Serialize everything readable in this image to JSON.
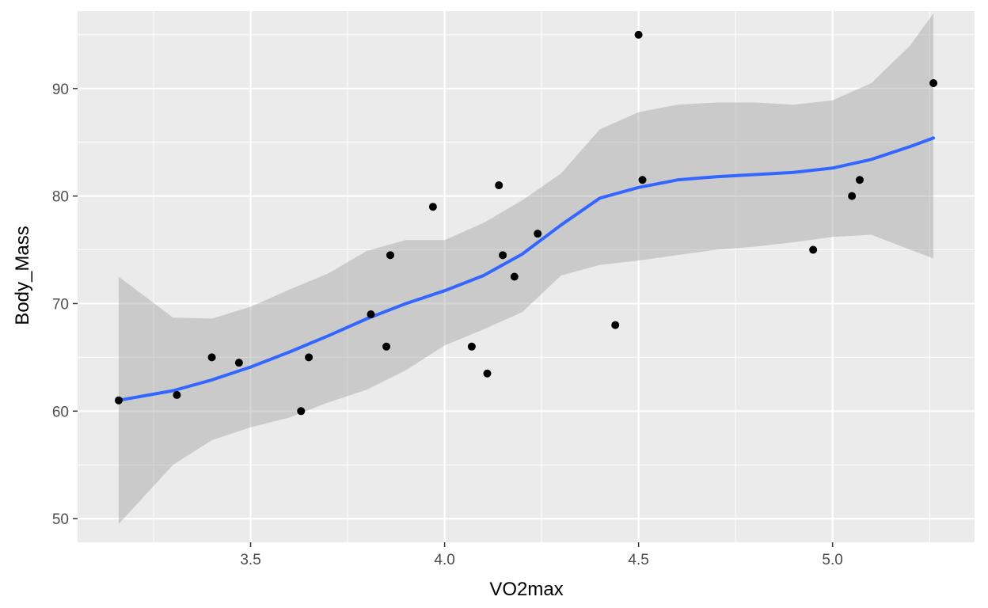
{
  "chart_data": {
    "type": "scatter",
    "title": "",
    "xlabel": "VO2max",
    "ylabel": "Body_Mass",
    "xlim": [
      3.054,
      5.366
    ],
    "ylim": [
      47.8,
      97.2
    ],
    "x_ticks": [
      3.5,
      4.0,
      4.5,
      5.0
    ],
    "x_tick_labels": [
      "3.5",
      "4.0",
      "4.5",
      "5.0"
    ],
    "y_ticks": [
      50,
      60,
      70,
      80,
      90
    ],
    "y_tick_labels": [
      "50",
      "60",
      "70",
      "80",
      "90"
    ],
    "x_minor": [
      3.25,
      3.75,
      4.25,
      4.75,
      5.25
    ],
    "y_minor": [
      55,
      65,
      75,
      85,
      95
    ],
    "grid": true,
    "points": [
      {
        "x": 3.16,
        "y": 61.0
      },
      {
        "x": 3.31,
        "y": 61.5
      },
      {
        "x": 3.4,
        "y": 65.0
      },
      {
        "x": 3.47,
        "y": 64.5
      },
      {
        "x": 3.63,
        "y": 60.0
      },
      {
        "x": 3.65,
        "y": 65.0
      },
      {
        "x": 3.81,
        "y": 69.0
      },
      {
        "x": 3.85,
        "y": 66.0
      },
      {
        "x": 3.86,
        "y": 74.5
      },
      {
        "x": 3.97,
        "y": 79.0
      },
      {
        "x": 4.07,
        "y": 66.0
      },
      {
        "x": 4.11,
        "y": 63.5
      },
      {
        "x": 4.14,
        "y": 81.0
      },
      {
        "x": 4.15,
        "y": 74.5
      },
      {
        "x": 4.18,
        "y": 72.5
      },
      {
        "x": 4.24,
        "y": 76.5
      },
      {
        "x": 4.44,
        "y": 68.0
      },
      {
        "x": 4.5,
        "y": 95.0
      },
      {
        "x": 4.51,
        "y": 81.5
      },
      {
        "x": 4.95,
        "y": 75.0
      },
      {
        "x": 5.05,
        "y": 80.0
      },
      {
        "x": 5.07,
        "y": 81.5
      },
      {
        "x": 5.26,
        "y": 90.5
      }
    ],
    "smooth": {
      "method": "loess",
      "color": "#3366FF",
      "band_color": "#999999",
      "x": [
        3.16,
        3.3,
        3.4,
        3.5,
        3.6,
        3.7,
        3.8,
        3.9,
        4.0,
        4.1,
        4.2,
        4.3,
        4.4,
        4.5,
        4.6,
        4.7,
        4.8,
        4.9,
        5.0,
        5.1,
        5.2,
        5.26
      ],
      "y": [
        61.0,
        61.9,
        62.9,
        64.1,
        65.5,
        67.0,
        68.6,
        70.0,
        71.2,
        72.6,
        74.6,
        77.3,
        79.8,
        80.8,
        81.5,
        81.8,
        82.0,
        82.2,
        82.6,
        83.4,
        84.6,
        85.4
      ],
      "lower": [
        49.5,
        55.0,
        57.3,
        58.5,
        59.4,
        60.8,
        62.0,
        63.8,
        66.1,
        67.6,
        69.2,
        72.6,
        73.6,
        74.0,
        74.5,
        75.0,
        75.3,
        75.7,
        76.2,
        76.4,
        75.0,
        74.2
      ],
      "upper": [
        72.5,
        68.7,
        68.6,
        69.7,
        71.3,
        72.8,
        74.9,
        75.9,
        75.9,
        77.5,
        79.6,
        82.1,
        86.2,
        87.8,
        88.5,
        88.7,
        88.7,
        88.5,
        88.9,
        90.5,
        94.0,
        97.0
      ]
    }
  }
}
